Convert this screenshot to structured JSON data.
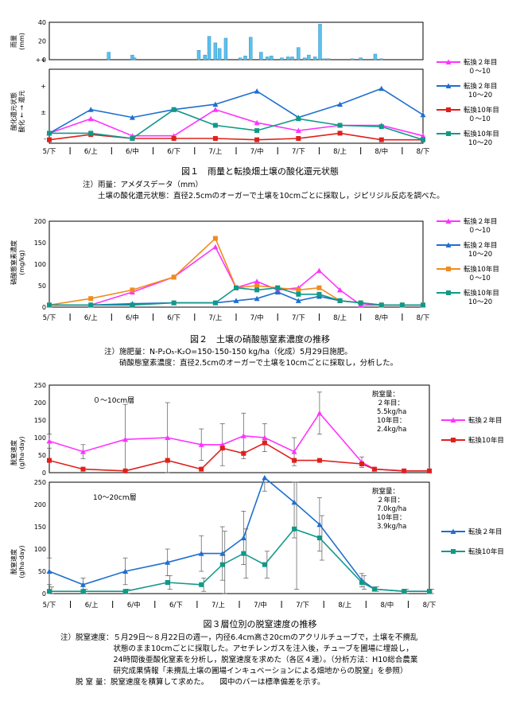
{
  "periods": [
    "5/下",
    "6/上",
    "6/中",
    "6/下",
    "7/上",
    "7/中",
    "7/下",
    "8/上",
    "8/中",
    "8/下"
  ],
  "colors": {
    "m2": "#ff33ff",
    "b2": "#1e6fd0",
    "r10": "#e0201c",
    "t10": "#119988",
    "o10": "#f08b1e",
    "rain": "#59c1ee"
  },
  "fig1": {
    "rain_ylabel": "雨量\n(mm)",
    "rain_ticks": [
      "40",
      "20",
      "0"
    ],
    "redox_ylabel_1": "酸化還元状態",
    "redox_ylabel_2": "酸化 ← → 還元",
    "redox_ticks": [
      "++",
      "+",
      "±",
      "-"
    ],
    "legend": [
      {
        "label": "転換２年目",
        "sub": "０～10",
        "key": "m2"
      },
      {
        "label": "転換２年目",
        "sub": "10～20",
        "key": "b2"
      },
      {
        "label": "転換10年目",
        "sub": "０～10",
        "key": "r10"
      },
      {
        "label": "転換10年目",
        "sub": "10～20",
        "key": "t10"
      }
    ],
    "caption": "図１　雨量と転換畑土壌の酸化還元状態",
    "notes": [
      "注）雨量：アメダスデータ（mm）",
      "　　土壌の酸化還元状態：直径2.5cmのオーガーで土壌を10cmごとに採取し，ジピリジル反応を調べた。"
    ]
  },
  "fig2": {
    "ylabel": "硝酸態窒素濃度\n(mg/kg)",
    "ticks": [
      "200",
      "150",
      "100",
      "50",
      "0"
    ],
    "legend": [
      {
        "label": "転換２年目",
        "sub": "０～10",
        "key": "m2"
      },
      {
        "label": "転換２年目",
        "sub": "10～20",
        "key": "b2"
      },
      {
        "label": "転換10年目",
        "sub": "０～10",
        "key": "o10"
      },
      {
        "label": "転換10年目",
        "sub": "10～20",
        "key": "t10"
      }
    ],
    "caption": "図２　土壌の硝酸態窒素濃度の推移",
    "notes": [
      "注）施肥量：N-P₂O₅-K₂O=150-150-150 kg/ha（化成）5月29日施肥。",
      "　　硝酸態窒素濃度：直径2.5cmのオーガーで土壌を10cmごとに採取し，分析した。"
    ]
  },
  "fig3": {
    "ylabel": "脱窒速度\n(g/ha·day)",
    "top": {
      "title": "０～10cm層",
      "ticks": [
        "250",
        "200",
        "150",
        "100",
        "50",
        "0"
      ],
      "annotation": [
        "脱窒量：",
        "２年目：",
        "5.5kg/ha",
        "10年目：",
        "2.4kg/ha"
      ],
      "legend": [
        {
          "label": "転換２年目",
          "key": "m2"
        },
        {
          "label": "転換10年目",
          "key": "r10"
        }
      ]
    },
    "bottom": {
      "title": "10～20cm層",
      "ticks": [
        "250",
        "200",
        "150",
        "100",
        "50",
        "0"
      ],
      "annotation": [
        "脱窒量：",
        "２年目：",
        "7.0kg/ha",
        "10年目：",
        "3.9kg/ha"
      ],
      "legend": [
        {
          "label": "転換２年目",
          "key": "b2"
        },
        {
          "label": "転換10年目",
          "key": "t10"
        }
      ]
    },
    "caption": "図３層位別の脱窒速度の推移",
    "notes": [
      "注）脱窒速度：５月29日～８月22日の週一，内径6.4cm高さ20cmのアクリルチューブで，土壌を不攪乱",
      "　　　　　　　状態のまま10cmごとに採取した。アセチレンガスを注入後，チューブを圃場に埋設し，",
      "　　　　　　　24時間後亜酸化窒素を分析し，脱窒速度を求めた（各区４連）。（分析方法：H10総合農業",
      "　　　　　　　研究成果情報「未攪乱土壌の圃場インキュベーションによる畑地からの脱窒」を参照）",
      "　　脱 窒 量：脱窒速度を積算して求めた。　　図中のバーは標準偏差を示す。"
    ]
  },
  "chart_data": [
    {
      "type": "bar",
      "title": "雨量",
      "ylabel": "雨量 (mm)",
      "ylim": [
        0,
        40
      ],
      "x_range": [
        0,
        9
      ],
      "x_unit": "旬 (5/下=0 … 8/下=9)",
      "x": [
        1.43,
        2.0,
        2.05,
        3.6,
        3.75,
        3.85,
        4.0,
        4.1,
        4.25,
        4.6,
        4.72,
        4.85,
        5.1,
        5.25,
        5.35,
        5.6,
        5.75,
        5.85,
        6.0,
        6.15,
        6.25,
        6.4,
        6.52,
        6.62,
        6.72,
        7.3,
        7.5,
        7.85,
        8.0
      ],
      "values": [
        8,
        5,
        2,
        10,
        5,
        25,
        18,
        12,
        23,
        2,
        4,
        24,
        8,
        3,
        4,
        2,
        3,
        3,
        13,
        2,
        5,
        3,
        38,
        1,
        1,
        1,
        2,
        6,
        1
      ]
    },
    {
      "type": "line",
      "title": "酸化還元状態",
      "y_categories": [
        "-",
        "±",
        "+",
        "++"
      ],
      "x": [
        0,
        1,
        2,
        3,
        4,
        5,
        6,
        7,
        8,
        9
      ],
      "series": [
        {
          "name": "転換２年目 ０～10",
          "values": [
            0.2,
            0.75,
            0.1,
            0.1,
            1.1,
            0.6,
            0.3,
            0.5,
            0.5,
            0.1
          ]
        },
        {
          "name": "転換２年目 10～20",
          "values": [
            0.2,
            1.1,
            0.8,
            1.1,
            1.3,
            1.8,
            0.8,
            1.3,
            1.9,
            0.9
          ]
        },
        {
          "name": "転換10年目 ０～10",
          "values": [
            -0.05,
            0.15,
            0.0,
            0.0,
            0.0,
            -0.05,
            0.0,
            0.2,
            -0.05,
            -0.05
          ]
        },
        {
          "name": "転換10年目 10～20",
          "values": [
            0.2,
            0.2,
            0.0,
            1.1,
            0.5,
            0.3,
            0.75,
            0.5,
            0.45,
            -0.05
          ]
        }
      ]
    },
    {
      "type": "line",
      "title": "土壌の硝酸態窒素濃度の推移",
      "ylabel": "硝酸態窒素濃度 (mg/kg)",
      "ylim": [
        0,
        200
      ],
      "x": [
        0,
        1,
        2,
        3,
        4,
        4.5,
        5,
        5.5,
        6,
        6.5,
        7,
        7.5,
        8,
        8.5,
        9
      ],
      "series": [
        {
          "name": "転換２年目 ０～10",
          "values": [
            5,
            5,
            35,
            70,
            140,
            45,
            60,
            40,
            45,
            85,
            40,
            5,
            5,
            5,
            5
          ]
        },
        {
          "name": "転換２年目 10～20",
          "values": [
            5,
            5,
            8,
            10,
            10,
            15,
            20,
            35,
            15,
            25,
            15,
            10,
            5,
            5,
            5
          ]
        },
        {
          "name": "転換10年目 ０～10",
          "values": [
            5,
            20,
            40,
            70,
            160,
            45,
            50,
            45,
            40,
            45,
            15,
            10,
            5,
            5,
            5
          ]
        },
        {
          "name": "転換10年目 10～20",
          "values": [
            5,
            5,
            5,
            10,
            10,
            45,
            40,
            45,
            30,
            30,
            15,
            10,
            5,
            5,
            5
          ]
        }
      ]
    },
    {
      "type": "line",
      "title": "０～10cm層 脱窒速度",
      "ylabel": "脱窒速度 (g/ha·day)",
      "ylim": [
        0,
        250
      ],
      "x": [
        0,
        0.8,
        1.8,
        2.8,
        3.6,
        4.1,
        4.6,
        5.1,
        5.8,
        6.4,
        7.4,
        7.7,
        8.4,
        9
      ],
      "series": [
        {
          "name": "転換２年目",
          "values": [
            90,
            60,
            95,
            100,
            80,
            80,
            105,
            100,
            60,
            170,
            30,
            10,
            5,
            5
          ],
          "error": [
            20,
            20,
            100,
            100,
            45,
            60,
            65,
            40,
            40,
            60,
            15,
            5,
            5,
            5
          ]
        },
        {
          "name": "転換10年目",
          "values": [
            35,
            10,
            5,
            35,
            10,
            70,
            55,
            85,
            35,
            35,
            25,
            10,
            5,
            5
          ]
        }
      ]
    },
    {
      "type": "line",
      "title": "10～20cm層 脱窒速度",
      "ylabel": "脱窒速度 (g/ha·day)",
      "ylim": [
        0,
        250
      ],
      "x": [
        0,
        0.8,
        1.8,
        2.8,
        3.6,
        4.1,
        4.6,
        5.1,
        5.8,
        6.4,
        7.4,
        7.7,
        8.4,
        9
      ],
      "series": [
        {
          "name": "転換２年目",
          "values": [
            50,
            20,
            50,
            70,
            90,
            90,
            125,
            260,
            205,
            155,
            30,
            10,
            5,
            5
          ],
          "error": [
            30,
            15,
            30,
            30,
            40,
            60,
            60,
            30,
            80,
            60,
            15,
            5,
            5,
            5
          ]
        },
        {
          "name": "転換10年目",
          "values": [
            5,
            5,
            5,
            25,
            20,
            65,
            90,
            65,
            145,
            125,
            25,
            10,
            5,
            5
          ],
          "error": [
            10,
            5,
            5,
            15,
            15,
            75,
            55,
            30,
            135,
            50,
            15,
            5,
            5,
            5
          ]
        }
      ]
    }
  ]
}
